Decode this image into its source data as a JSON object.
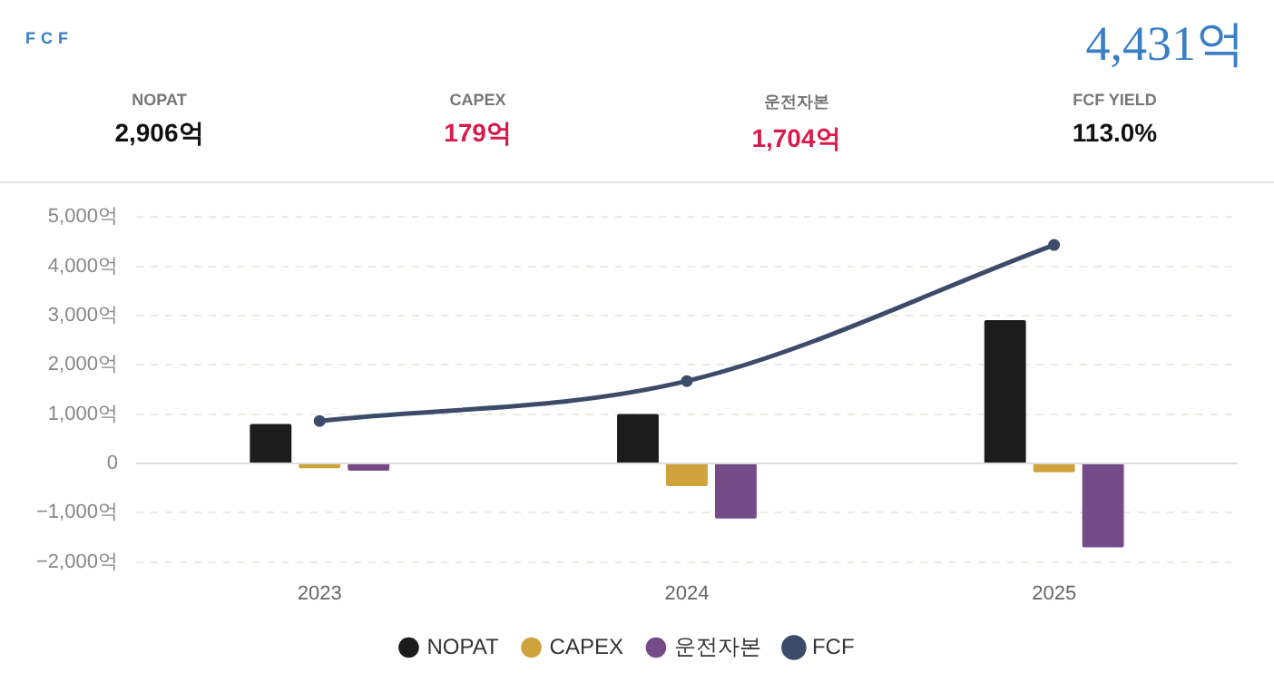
{
  "chart_data": [
    {
      "type": "other",
      "title": "FCF",
      "annotations": [
        "4,431억",
        "NOPAT",
        "2,906억",
        "CAPEX",
        "179억",
        "운전자본",
        "1,704억",
        "FCF YIELD",
        "113.0%"
      ]
    },
    {
      "type": "bar",
      "categories": [
        "2023",
        "2024",
        "2025"
      ],
      "series": [
        {
          "name": "NOPAT",
          "color": "#1c1c1c",
          "values": [
            800,
            1000,
            2906
          ]
        },
        {
          "name": "CAPEX",
          "color": "#d0a23c",
          "values": [
            -100,
            -460,
            -179
          ]
        },
        {
          "name": "운전자본",
          "color": "#744b87",
          "values": [
            -150,
            -1120,
            -1704
          ]
        },
        {
          "name": "FCF",
          "type": "line",
          "color": "#3d4b6b",
          "marker": "circle",
          "values": [
            860,
            1670,
            4431
          ]
        }
      ],
      "ylim": [
        -2000,
        5000
      ],
      "yticks": [
        {
          "value": -2000,
          "label": "−2,000억"
        },
        {
          "value": -1000,
          "label": "−1,000억"
        },
        0,
        {
          "value": 1000,
          "label": "1,000억"
        },
        {
          "value": 2000,
          "label": "2,000억"
        },
        {
          "value": 3000,
          "label": "3,000억"
        },
        {
          "value": 4000,
          "label": "4,000억"
        },
        {
          "value": 5000,
          "label": "5,000억"
        }
      ],
      "grid": "y",
      "legend": "bottom"
    }
  ]
}
